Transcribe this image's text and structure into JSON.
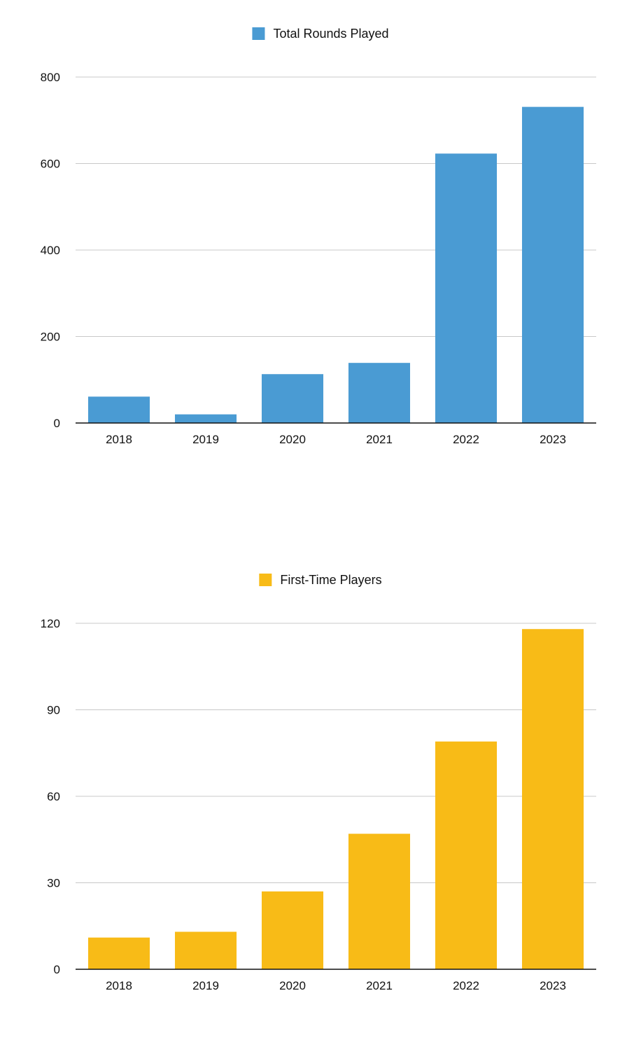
{
  "chart_data": [
    {
      "type": "bar",
      "categories": [
        "2018",
        "2019",
        "2020",
        "2021",
        "2022",
        "2023"
      ],
      "series": [
        {
          "name": "Total Rounds Played",
          "values": [
            61,
            20,
            113,
            139,
            623,
            731
          ],
          "color": "#4a9bd3"
        }
      ],
      "ylim": [
        0,
        800
      ],
      "yticks": [
        0,
        200,
        400,
        600,
        800
      ],
      "grid": true,
      "legend": "top-center"
    },
    {
      "type": "bar",
      "categories": [
        "2018",
        "2019",
        "2020",
        "2021",
        "2022",
        "2023"
      ],
      "series": [
        {
          "name": "First-Time Players",
          "values": [
            11,
            13,
            27,
            47,
            79,
            118
          ],
          "color": "#f8bb17"
        }
      ],
      "ylim": [
        0,
        120
      ],
      "yticks": [
        0,
        30,
        60,
        90,
        120
      ],
      "grid": true,
      "legend": "top-center"
    }
  ]
}
